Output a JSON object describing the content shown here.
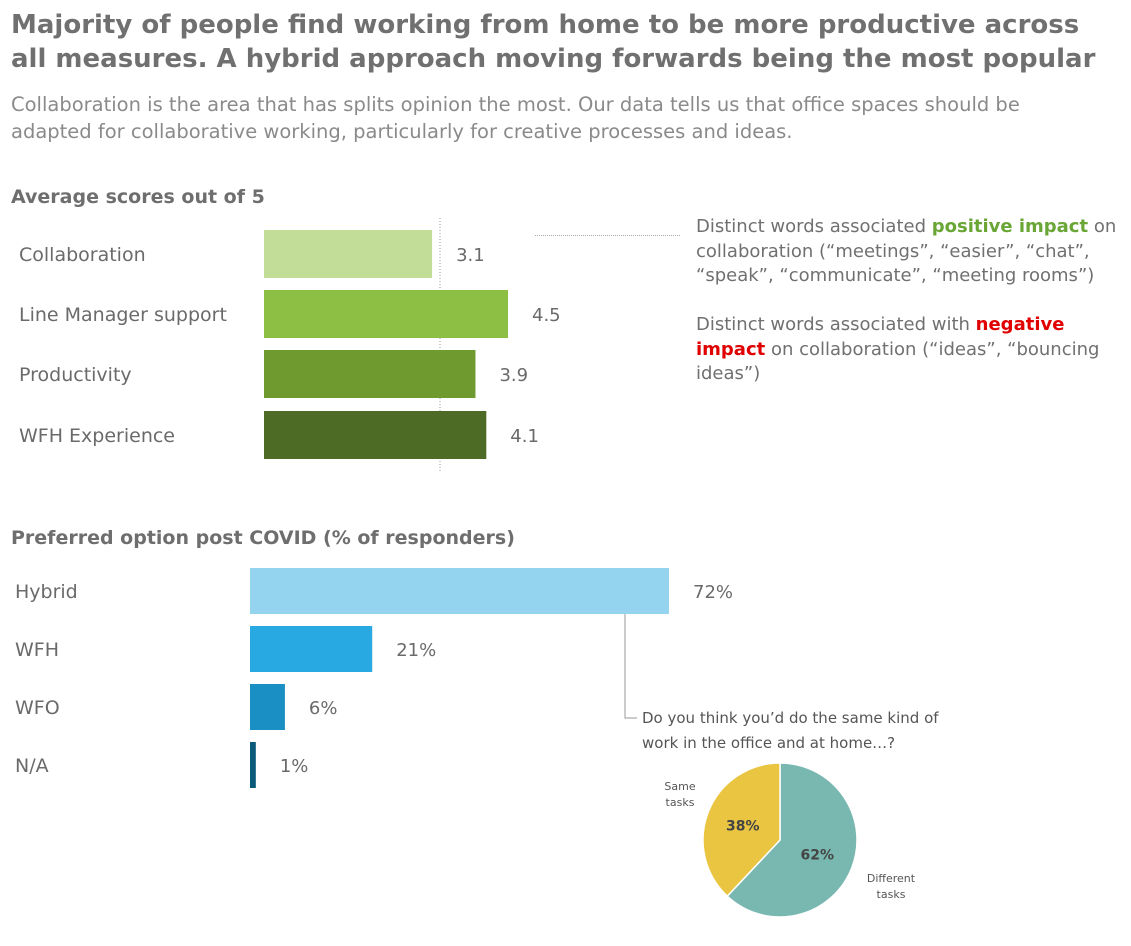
{
  "header": {
    "title": "Majority of people find working from home to be more productive across all measures. A hybrid approach moving forwards being the most popular",
    "subtitle": "Collaboration is the area that has splits opinion the most. Our data tells us that office spaces should be adapted for collaborative working, particularly for creative processes and ideas."
  },
  "notes": {
    "positive_prefix": "Distinct words associated ",
    "positive_highlight": "positive impact",
    "positive_suffix": " on collaboration  (“meetings”, “easier”, “chat”, “speak”, “communicate”, “meeting rooms”)",
    "negative_prefix": "Distinct words associated with ",
    "negative_highlight": "negative impact",
    "negative_suffix": " on collaboration (“ideas”, “bouncing ideas”)"
  },
  "colors": {
    "positive": "#6aa636",
    "negative": "#e00000",
    "scores": [
      "#c2dd97",
      "#8dbf45",
      "#6e9a30",
      "#4e6b26"
    ],
    "options": [
      "#95d4ef",
      "#29a9e1",
      "#1a8fc3",
      "#0b5a7a"
    ],
    "pie": [
      "#e9c542",
      "#78b8b0"
    ]
  },
  "chart_data": [
    {
      "type": "bar",
      "title": "Average scores out of 5",
      "categories": [
        "Collaboration",
        "Line Manager support",
        "Productivity",
        "WFH Experience"
      ],
      "values": [
        3.1,
        4.5,
        3.9,
        4.1
      ],
      "value_labels": [
        "3.1",
        "4.5",
        "3.9",
        "4.1"
      ],
      "orientation": "horizontal",
      "reference_line": 3.1
    },
    {
      "type": "bar",
      "title": "Preferred option post COVID (% of responders)",
      "categories": [
        "Hybrid",
        "WFH",
        "WFO",
        "N/A"
      ],
      "values": [
        72,
        21,
        6,
        1
      ],
      "value_labels": [
        "72%",
        "21%",
        "6%",
        "1%"
      ],
      "orientation": "horizontal"
    },
    {
      "type": "pie",
      "title": "Do you think you’d do the same kind of work in the office and at home…?",
      "labels": [
        "Same tasks",
        "Different tasks"
      ],
      "values": [
        38,
        62
      ],
      "value_labels": [
        "38%",
        "62%"
      ]
    }
  ]
}
